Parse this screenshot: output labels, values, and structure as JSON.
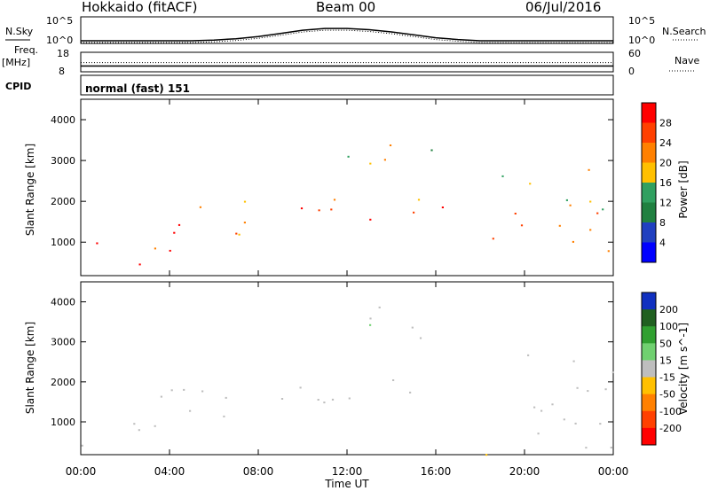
{
  "header": {
    "station": "Hokkaido (fitACF)",
    "beam": "Beam 00",
    "date": "06/Jul/2016"
  },
  "colors": {
    "curve": "#000000",
    "border": "#000000",
    "background": "#ffffff",
    "ground_scatter": "#bebebe"
  },
  "chart_data": [
    {
      "type": "line",
      "title": "",
      "left_label": "N.Sky",
      "right_label": "N.Search",
      "left_ticks": [
        "10^5",
        "10^0"
      ],
      "right_ticks": [
        "10^5",
        "10^0"
      ],
      "log_scale": true,
      "series": [
        {
          "name": "N.Sky",
          "x": [
            0,
            1,
            2,
            3,
            4,
            5,
            6,
            7,
            8,
            9,
            10,
            11,
            12,
            13,
            14,
            15,
            16,
            17,
            18,
            19,
            20,
            21,
            22,
            23,
            24
          ],
          "y": [
            1,
            1,
            1,
            1,
            1,
            1,
            1.5,
            3,
            10,
            50,
            300,
            800,
            800,
            400,
            120,
            25,
            5,
            2,
            1,
            1,
            1,
            1,
            1,
            1,
            1
          ]
        }
      ],
      "dotted_series": "N.Search"
    },
    {
      "type": "line",
      "left_label": "Freq.",
      "left_unit": "[MHz]",
      "right_label": "Nave",
      "left_ticks": [
        "18",
        "8"
      ],
      "right_ticks": [
        "60",
        "0"
      ],
      "freq_mhz": 10.5,
      "nave": 28
    },
    {
      "type": "heatmap",
      "ylabel": "Slant Range [km]",
      "colorbar_label": "Power [dB]",
      "colorbar_ticks": [
        "28",
        "24",
        "20",
        "16",
        "12",
        "8",
        "4"
      ],
      "colorbar_colors": [
        "#ff0000",
        "#ff4000",
        "#ff8000",
        "#ffc000",
        "#30a060",
        "#208040",
        "#2040c0",
        "#0000ff"
      ],
      "y_ticks": [
        "1000",
        "2000",
        "3000",
        "4000"
      ],
      "ylim": [
        180,
        4500
      ],
      "regions": [
        {
          "x0": 0,
          "x1": 4,
          "r0": 200,
          "r1": 1100,
          "value": 26
        },
        {
          "x0": 3,
          "x1": 8,
          "r0": 1000,
          "r1": 2200,
          "value": 24
        },
        {
          "x0": 8,
          "x1": 16.5,
          "r0": 1500,
          "r1": 2300,
          "value": 26
        },
        {
          "x0": 12,
          "x1": 16,
          "r0": 2800,
          "r1": 3900,
          "value": 16
        },
        {
          "x0": 18.5,
          "x1": 24,
          "r0": 300,
          "r1": 2800,
          "value": 22
        }
      ]
    },
    {
      "type": "heatmap",
      "ylabel": "Slant Range [km]",
      "xlabel": "Time UT",
      "colorbar_label": "Velocity [m s^-1]",
      "colorbar_ticks": [
        "200",
        "100",
        "50",
        "15",
        "-15",
        "-50",
        "-100",
        "-200"
      ],
      "colorbar_colors": [
        "#1030c0",
        "#206020",
        "#30a030",
        "#70d070",
        "#bebebe",
        "#ffc000",
        "#ff8000",
        "#ff4000",
        "#ff0000"
      ],
      "y_ticks": [
        "1000",
        "2000",
        "3000",
        "4000"
      ],
      "x_ticks": [
        "00:00",
        "04:00",
        "08:00",
        "12:00",
        "16:00",
        "20:00",
        "00:00"
      ],
      "ylim": [
        180,
        4500
      ],
      "xlim": [
        0,
        24
      ],
      "regions": [
        {
          "x0": 0,
          "x1": 4,
          "r0": 200,
          "r1": 1100,
          "value": 0
        },
        {
          "x0": 3,
          "x1": 8,
          "r0": 1000,
          "r1": 2200,
          "value": 0
        },
        {
          "x0": 8,
          "x1": 16.5,
          "r0": 1500,
          "r1": 2300,
          "value": 0
        },
        {
          "x0": 12,
          "x1": 16,
          "r0": 2800,
          "r1": 3900,
          "value": 10
        },
        {
          "x0": 18.5,
          "x1": 24,
          "r0": 300,
          "r1": 2800,
          "value": 0
        },
        {
          "x0": 16,
          "x1": 20,
          "r0": 180,
          "r1": 400,
          "value": -40
        }
      ]
    }
  ],
  "status": {
    "cpid_label": "CPID",
    "cpid_text": "normal (fast) 151"
  }
}
